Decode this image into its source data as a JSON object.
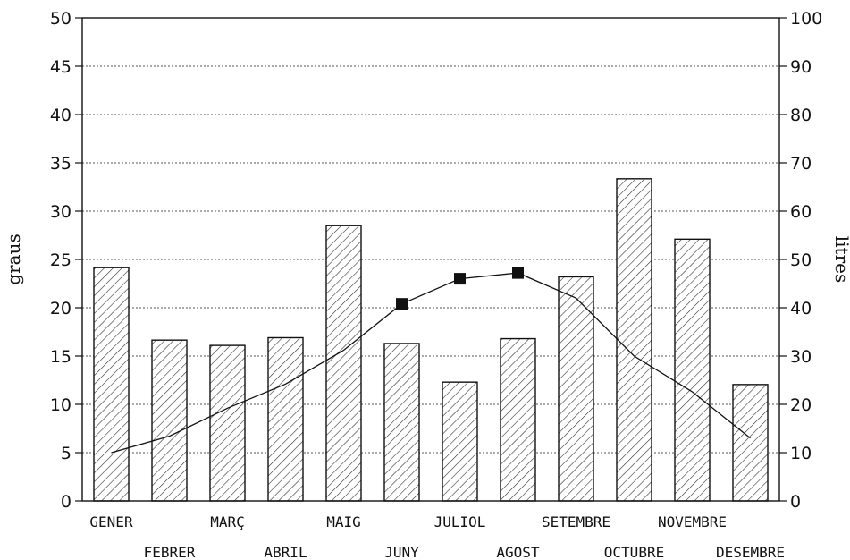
{
  "chart_data": {
    "type": "bar",
    "categories": [
      "GENER",
      "FEBRER",
      "MARÇ",
      "ABRIL",
      "MAIG",
      "JUNY",
      "JULIOL",
      "AGOST",
      "SETEMBRE",
      "OCTUBRE",
      "NOVEMBRE",
      "DESEMBRE"
    ],
    "series": [
      {
        "type": "bar",
        "axis": "right",
        "values": [
          48.3,
          33.3,
          32.2,
          33.8,
          57.0,
          32.6,
          24.6,
          33.6,
          46.4,
          66.7,
          54.2,
          24.1
        ]
      },
      {
        "type": "line",
        "axis": "left",
        "values": [
          5.0,
          6.7,
          9.6,
          12.1,
          15.6,
          20.4,
          23.0,
          23.6,
          21.0,
          15.0,
          11.3,
          6.5
        ]
      }
    ],
    "marker_indices": [
      5,
      6,
      7
    ],
    "ylabel": "graus",
    "y2label": "litres",
    "ylim": [
      0,
      50
    ],
    "y2lim": [
      0,
      100
    ],
    "yticks": [
      0,
      5,
      10,
      15,
      20,
      25,
      30,
      35,
      40,
      45,
      50
    ],
    "y2ticks": [
      0,
      10,
      20,
      30,
      40,
      50,
      60,
      70,
      80,
      90,
      100
    ],
    "grid": "horizontal-dotted",
    "bar_pattern": "diagonal-hatch"
  }
}
